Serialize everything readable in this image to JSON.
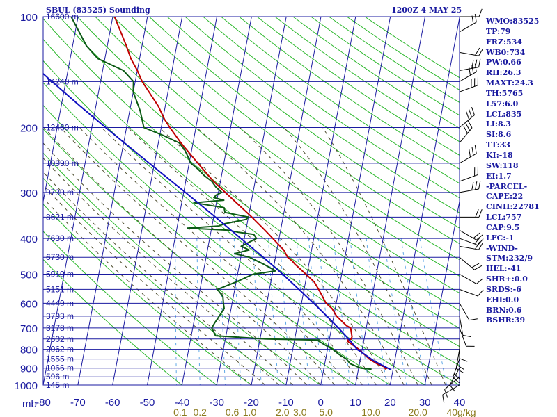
{
  "header": {
    "station": "SBUL (83525) Sounding",
    "time": "1200Z  4 MAY 25"
  },
  "indices": [
    "WMO:83525",
    "TP:79",
    "FRZ:534",
    "WB0:734",
    "PW:0.66",
    "RH:26.3",
    "MAXT:24.3",
    "TH:5765",
    "L57:6.0",
    "LCL:835",
    "LI:8.3",
    "SI:8.6",
    "TT:33",
    "KI:-18",
    "SW:118",
    "EI:1.7",
    "-PARCEL-",
    "CAPE:22",
    "CINH:22781",
    "LCL:757",
    "CAP:9.5",
    "LFC:-1",
    "-WIND-",
    "STM:232/9",
    "HEL:-41",
    "SHR+:0.0",
    "SRDS:-6",
    "EHI:0.0",
    "BRN:0.6",
    "BSHR:39"
  ],
  "colors": {
    "axis": "#1a1aa0",
    "isotherm": "#1a1aa0",
    "dry_adiabat": "#2cb82c",
    "moist_adiabat": "#4d4d2e",
    "mixing_ratio": "#5fa8e6",
    "temperature": "#c00000",
    "dewpoint": "#0b5a14",
    "parcel": "#1010c0",
    "wind_barb": "#000000",
    "mixing_label": "#8a7a1c"
  },
  "chart_data": {
    "type": "skew-t",
    "pressure_axis": {
      "unit": "mb",
      "ticks": [
        100,
        200,
        300,
        400,
        500,
        600,
        700,
        800,
        900,
        1000
      ]
    },
    "temperature_axis": {
      "ticks": [
        -80,
        -70,
        -60,
        -50,
        -40,
        -30,
        -20,
        -10,
        0,
        10,
        20,
        30,
        40
      ],
      "range": [
        -80,
        40
      ]
    },
    "height_labels": [
      {
        "p": 100,
        "label": "16600 m"
      },
      {
        "p": 150,
        "label": "14240 m"
      },
      {
        "p": 200,
        "label": "12460 m"
      },
      {
        "p": 250,
        "label": "10990 m"
      },
      {
        "p": 300,
        "label": "9730 m"
      },
      {
        "p": 350,
        "label": "8621 m"
      },
      {
        "p": 400,
        "label": "7630 m"
      },
      {
        "p": 450,
        "label": "6730 m"
      },
      {
        "p": 500,
        "label": "5910 m"
      },
      {
        "p": 550,
        "label": "5151 m"
      },
      {
        "p": 600,
        "label": "4449 m"
      },
      {
        "p": 650,
        "label": "3793 m"
      },
      {
        "p": 700,
        "label": "3178 m"
      },
      {
        "p": 750,
        "label": "2602 m"
      },
      {
        "p": 800,
        "label": "2062 m"
      },
      {
        "p": 850,
        "label": "1555 m"
      },
      {
        "p": 900,
        "label": "1066 m"
      },
      {
        "p": 950,
        "label": "596 m"
      },
      {
        "p": 1000,
        "label": "145 m"
      }
    ],
    "mixing_ratio_labels": [
      {
        "w": "0.1",
        "t": -40.5
      },
      {
        "w": "0.2",
        "t": -34.8
      },
      {
        "w": "0.6",
        "t": -25.5
      },
      {
        "w": "1.0",
        "t": -20.5
      },
      {
        "w": "2.0",
        "t": -11.0
      },
      {
        "w": "3.0",
        "t": -6.0
      },
      {
        "w": "5.0",
        "t": 1.5
      },
      {
        "w": "10.0",
        "t": 14.5
      },
      {
        "w": "20.0",
        "t": 28.0
      },
      {
        "w": "40g/kg",
        "t": 40.5
      }
    ],
    "series": [
      {
        "key": "temperature",
        "points": [
          [
            906,
            17.9
          ],
          [
            903,
            17.7
          ],
          [
            900,
            18.3
          ],
          [
            875,
            15.0
          ],
          [
            850,
            12.6
          ],
          [
            800,
            9.0
          ],
          [
            760,
            5.3
          ],
          [
            755,
            5.3
          ],
          [
            750,
            6.2
          ],
          [
            740,
            6.4
          ],
          [
            700,
            5.5
          ],
          [
            690,
            4.2
          ],
          [
            650,
            0.8
          ],
          [
            620,
            -0.9
          ],
          [
            600,
            -2.9
          ],
          [
            550,
            -5.8
          ],
          [
            525,
            -7.5
          ],
          [
            500,
            -10.3
          ],
          [
            470,
            -14.0
          ],
          [
            460,
            -15.0
          ],
          [
            450,
            -16.5
          ],
          [
            430,
            -18.0
          ],
          [
            410,
            -20.5
          ],
          [
            400,
            -21.8
          ],
          [
            380,
            -24.5
          ],
          [
            350,
            -29.0
          ],
          [
            300,
            -38.0
          ],
          [
            280,
            -42.0
          ],
          [
            250,
            -47.5
          ],
          [
            220,
            -53.5
          ],
          [
            200,
            -57.5
          ],
          [
            190,
            -59.5
          ],
          [
            175,
            -62.0
          ],
          [
            150,
            -68.0
          ],
          [
            140,
            -70.0
          ],
          [
            130,
            -72.5
          ],
          [
            120,
            -74.5
          ],
          [
            100,
            -79.5
          ]
        ]
      },
      {
        "key": "dewpoint",
        "points": [
          [
            906,
            13.8
          ],
          [
            900,
            10.6
          ],
          [
            875,
            7.3
          ],
          [
            850,
            6.0
          ],
          [
            825,
            3.5
          ],
          [
            800,
            1.5
          ],
          [
            780,
            -0.8
          ],
          [
            760,
            -3.0
          ],
          [
            755,
            -3.0
          ],
          [
            750,
            -18.0
          ],
          [
            735,
            -33.0
          ],
          [
            700,
            -34.5
          ],
          [
            680,
            -34.0
          ],
          [
            650,
            -33.0
          ],
          [
            620,
            -32.0
          ],
          [
            600,
            -32.5
          ],
          [
            575,
            -33.0
          ],
          [
            550,
            -35.0
          ],
          [
            525,
            -30.0
          ],
          [
            500,
            -25.5
          ],
          [
            490,
            -19.2
          ],
          [
            470,
            -23.0
          ],
          [
            450,
            -27.5
          ],
          [
            440,
            -32.0
          ],
          [
            430,
            -28.0
          ],
          [
            420,
            -30.5
          ],
          [
            400,
            -26.5
          ],
          [
            390,
            -27.5
          ],
          [
            385,
            -32.0
          ],
          [
            380,
            -35.0
          ],
          [
            375,
            -47.0
          ],
          [
            370,
            -38.0
          ],
          [
            365,
            -36.5
          ],
          [
            355,
            -30.5
          ],
          [
            350,
            -30.0
          ],
          [
            340,
            -37.0
          ],
          [
            330,
            -37.5
          ],
          [
            320,
            -46.5
          ],
          [
            315,
            -38.0
          ],
          [
            310,
            -41.0
          ],
          [
            305,
            -40.5
          ],
          [
            300,
            -39.0
          ],
          [
            290,
            -41.0
          ],
          [
            280,
            -42.5
          ],
          [
            270,
            -45.0
          ],
          [
            260,
            -47.0
          ],
          [
            250,
            -49.5
          ],
          [
            230,
            -52.0
          ],
          [
            220,
            -54.0
          ],
          [
            210,
            -59.0
          ],
          [
            200,
            -65.0
          ],
          [
            180,
            -67.0
          ],
          [
            160,
            -70.0
          ],
          [
            150,
            -70.5
          ],
          [
            140,
            -74.0
          ],
          [
            130,
            -82.0
          ],
          [
            120,
            -86.0
          ],
          [
            100,
            -92.0
          ]
        ]
      },
      {
        "key": "parcel",
        "points": [
          [
            910,
            19.5
          ],
          [
            860,
            14.0
          ],
          [
            820,
            10.5
          ],
          [
            800,
            8.5
          ],
          [
            757,
            6.0
          ],
          [
            700,
            2.0
          ],
          [
            650,
            -2.0
          ],
          [
            600,
            -6.5
          ],
          [
            550,
            -11.5
          ],
          [
            500,
            -17.0
          ],
          [
            450,
            -23.5
          ],
          [
            400,
            -31.0
          ],
          [
            350,
            -39.5
          ],
          [
            300,
            -49.5
          ],
          [
            250,
            -61.5
          ],
          [
            200,
            -76.0
          ],
          [
            175,
            -84.5
          ],
          [
            150,
            -94.0
          ],
          [
            125,
            -105.0
          ],
          [
            100,
            -118.0
          ]
        ]
      }
    ],
    "wind_barbs_visible": true
  }
}
